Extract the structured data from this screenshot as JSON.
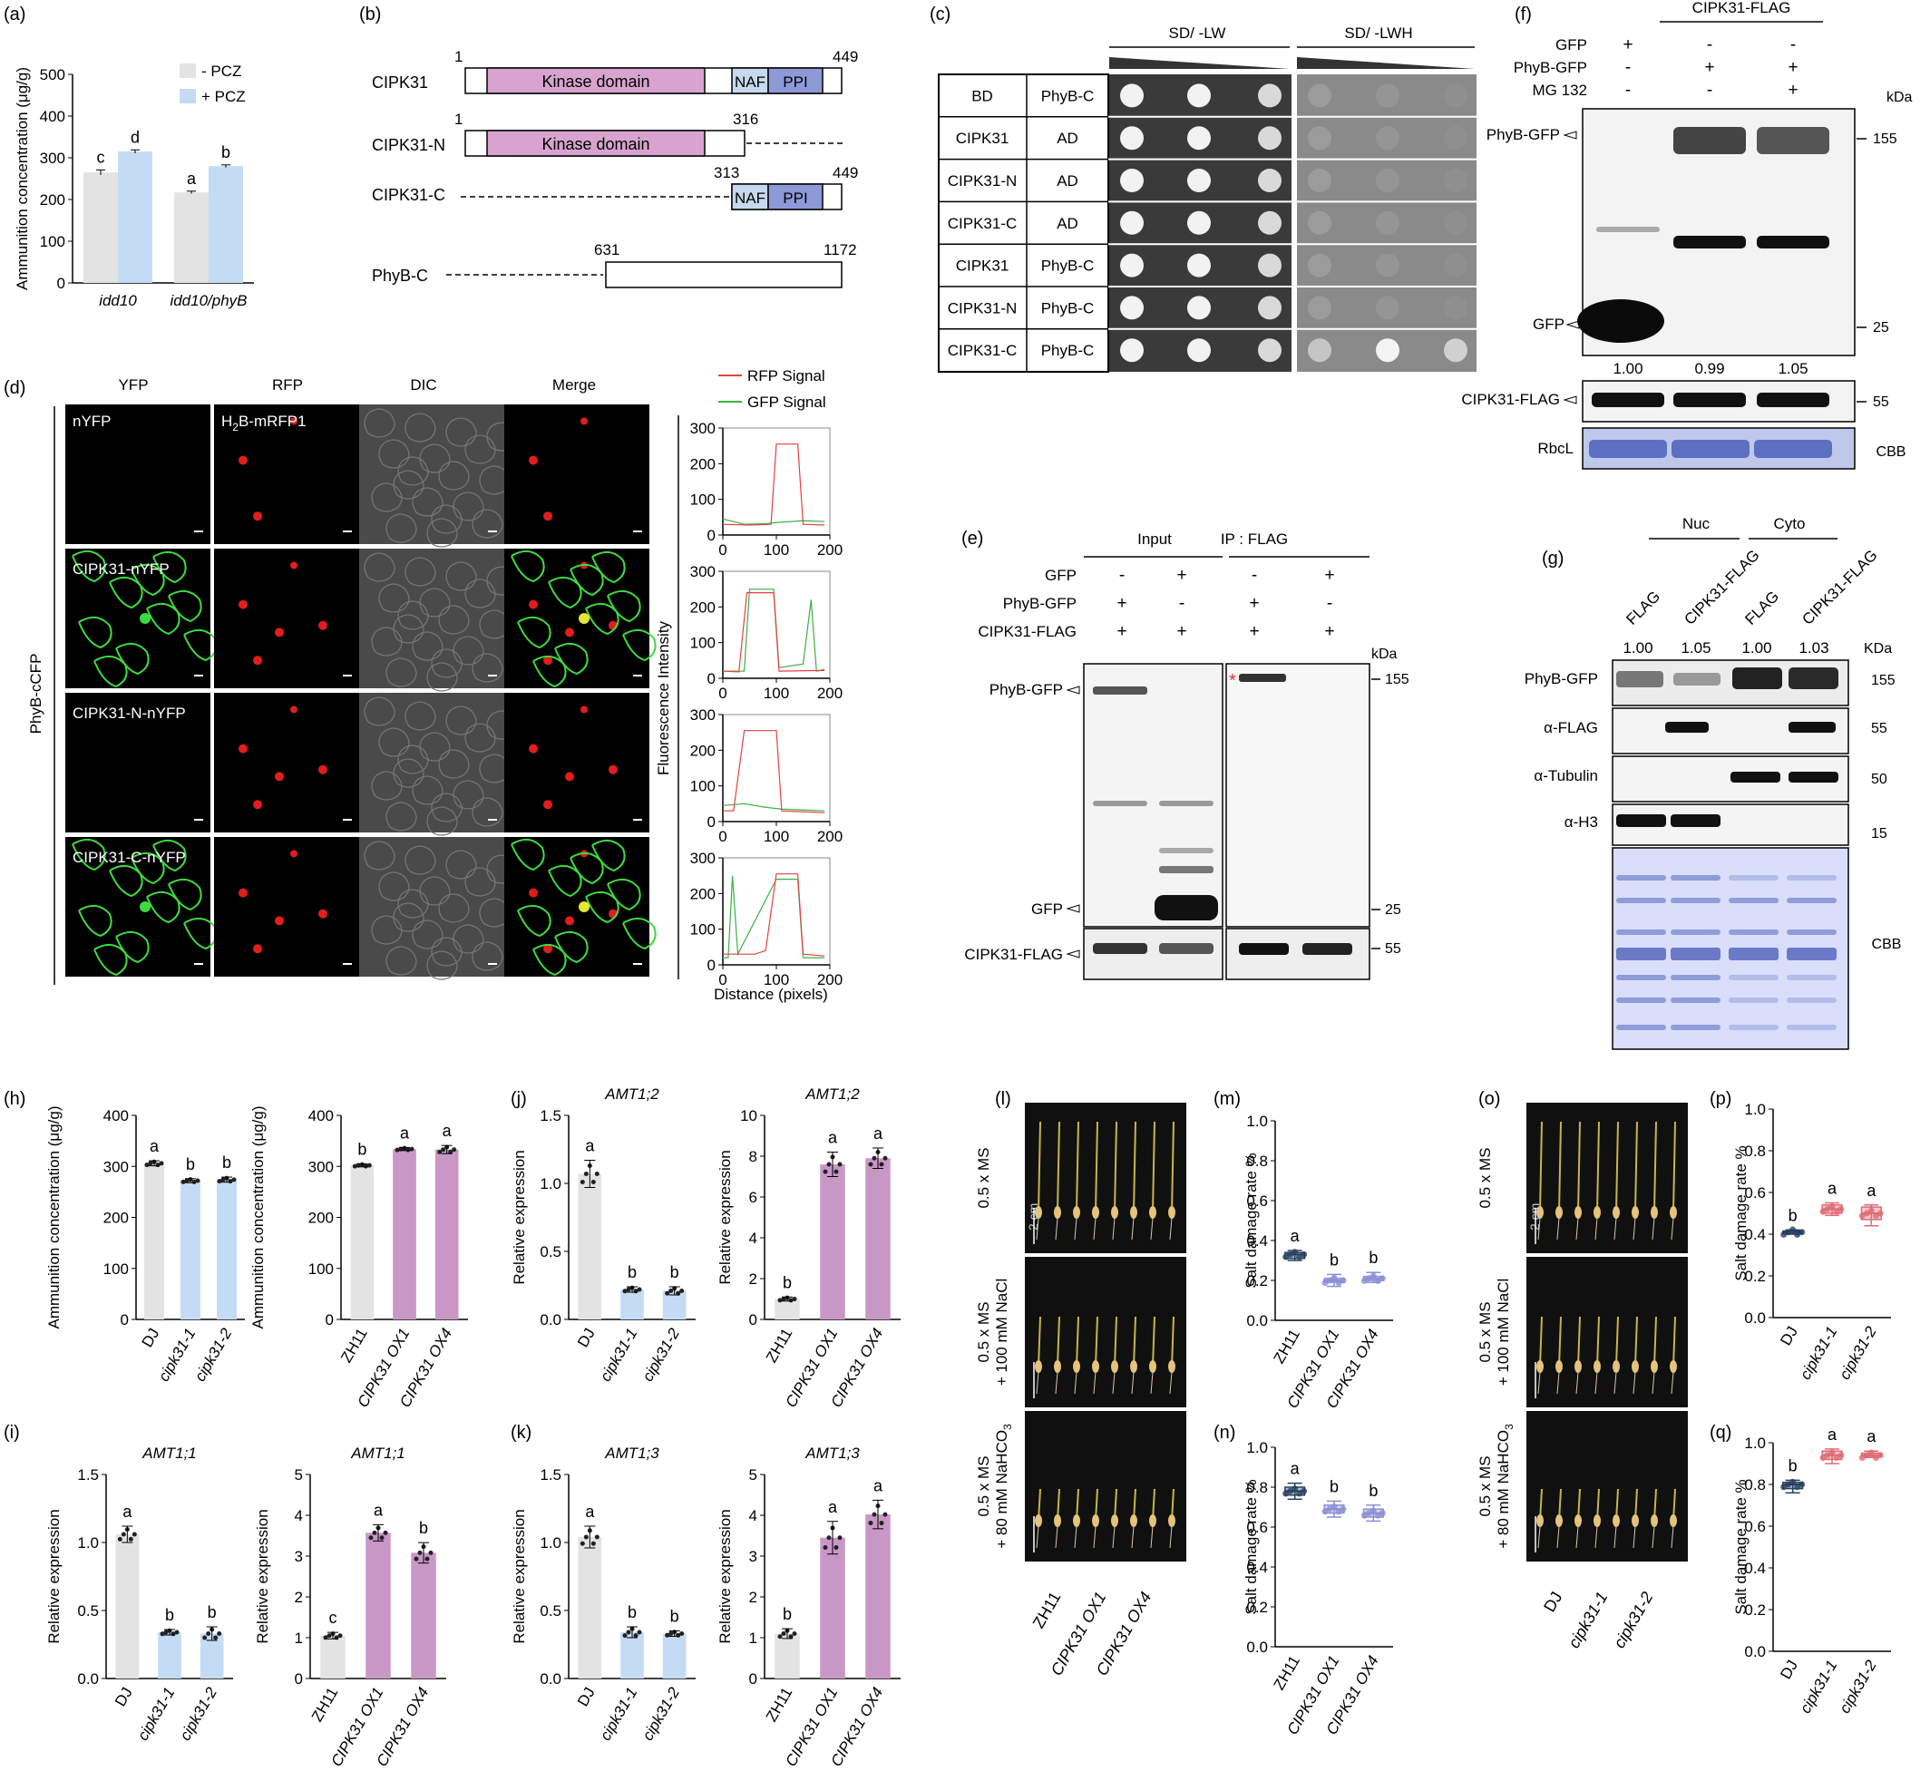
{
  "colors": {
    "gray": "#e3e3e3",
    "blue": "#c4dbf5",
    "pink": "#c997c6",
    "kinase": "#d8a4cf",
    "naf": "#c7d9ef",
    "ppi": "#8e99d8",
    "grayDot": "#222",
    "red": "#e84040",
    "green": "#3cb043",
    "boxBlue": "#8a8fd6",
    "boxRed": "#e06a75",
    "boxNavy": "#27405e",
    "ccb": "#5d6fc2"
  },
  "panel_letters": {
    "a": "(a)",
    "b": "(b)",
    "c": "(c)",
    "d": "(d)",
    "e": "(e)",
    "f": "(f)",
    "g": "(g)",
    "h": "(h)",
    "i": "(i)",
    "j": "(j)",
    "k": "(k)",
    "l": "(l)",
    "m": "(m)",
    "n": "(n)",
    "o": "(o)",
    "p": "(p)",
    "q": "(q)"
  },
  "panel_b": {
    "labels": [
      "CIPK31",
      "CIPK31-N",
      "CIPK31-C",
      "PhyB-C"
    ],
    "domain_kinase": "Kinase domain",
    "domain_naf": "NAF",
    "domain_ppi": "PPI",
    "nums": {
      "c1": "1",
      "c449": "449",
      "n1": "1",
      "n316": "316",
      "c313": "313",
      "c449b": "449",
      "p631": "631",
      "p1172": "1172"
    }
  },
  "panel_c": {
    "head1": "SD/ -LW",
    "head2": "SD/ -LWH",
    "rows": [
      [
        "BD",
        "PhyB-C"
      ],
      [
        "CIPK31",
        "AD"
      ],
      [
        "CIPK31-N",
        "AD"
      ],
      [
        "CIPK31-C",
        "AD"
      ],
      [
        "CIPK31",
        "PhyB-C"
      ],
      [
        "CIPK31-N",
        "PhyB-C"
      ],
      [
        "CIPK31-C",
        "PhyB-C"
      ]
    ]
  },
  "panel_d": {
    "cols": [
      "YFP",
      "RFP",
      "DIC",
      "Merge"
    ],
    "rows": [
      "nYFP",
      "CIPK31-nYFP",
      "CIPK31-N-nYFP",
      "CIPK31-C-nYFP"
    ],
    "rfp_label_main": "H",
    "rfp_label_sub": "2",
    "rfp_label_rest": "B-mRFP1",
    "side": "PhyB-cCFP",
    "legend_rfp": "RFP Signal",
    "legend_gfp": "GFP Signal",
    "ylabel": "Fluorescence Intensity",
    "xlabel": "Distance (pixels)",
    "yticks": [
      "0",
      "100",
      "200",
      "300"
    ],
    "xticks": [
      "0",
      "100",
      "200"
    ]
  },
  "panel_e": {
    "input": "Input",
    "ip": "IP : FLAG",
    "rowlabels": [
      "GFP",
      "PhyB-GFP",
      "CIPK31-FLAG"
    ],
    "signs": [
      [
        "-",
        "+",
        "-",
        "+"
      ],
      [
        "+",
        "-",
        "+",
        "-"
      ],
      [
        "+",
        "+",
        "+",
        "+"
      ]
    ],
    "kda": "kDa",
    "bands": [
      "PhyB-GFP",
      "GFP",
      "CIPK31-FLAG"
    ],
    "mw": [
      "155",
      "25",
      "55"
    ],
    "star": "*"
  },
  "panel_f": {
    "title": "CIPK31-FLAG",
    "rowlabels": [
      "GFP",
      "PhyB-GFP",
      "MG 132"
    ],
    "signs": [
      [
        "+",
        "-",
        "-"
      ],
      [
        "-",
        "+",
        "+"
      ],
      [
        "-",
        "-",
        "+"
      ]
    ],
    "kda": "kDa",
    "bands": [
      "PhyB-GFP",
      "GFP",
      "CIPK31-FLAG",
      "RbcL"
    ],
    "mw": [
      "155",
      "25",
      "55"
    ],
    "ratios": [
      "1.00",
      "0.99",
      "1.05"
    ],
    "cbb": "CBB"
  },
  "panel_g": {
    "nuc": "Nuc",
    "cyto": "Cyto",
    "lanes": [
      "FLAG",
      "CIPK31-FLAG",
      "FLAG",
      "CIPK31-FLAG"
    ],
    "ratios": [
      "1.00",
      "1.05",
      "1.00",
      "1.03"
    ],
    "kda": "KDa",
    "bands": [
      "PhyB-GFP",
      "α-FLAG",
      "α-Tubulin",
      "α-H3"
    ],
    "mw": [
      "155",
      "55",
      "50",
      "15"
    ],
    "cbb": "CBB"
  },
  "panel_lo": {
    "rows": [
      "0.5 x MS",
      "0.5 x MS",
      "0.5 x MS"
    ],
    "rows2": [
      "",
      "+ 100 mM NaCl",
      "+ 80 mM NaHCO"
    ],
    "sub": "3",
    "scale": "2 cm",
    "l_lines": [
      "ZH11",
      "CIPK31 OX1",
      "CIPK31 OX4"
    ],
    "o_lines": [
      "DJ",
      "cipk31-1",
      "cipk31-2"
    ]
  },
  "chart_data": [
    {
      "id": "a",
      "type": "bar",
      "categories": [
        "idd10",
        "idd10/phyB"
      ],
      "series": [
        {
          "name": "- PCZ",
          "values": [
            265,
            217
          ],
          "err": [
            6,
            3
          ]
        },
        {
          "name": "+ PCZ",
          "values": [
            315,
            280
          ],
          "err": [
            4,
            3
          ]
        }
      ],
      "letters": [
        [
          "c",
          "d"
        ],
        [
          "a",
          "b"
        ]
      ],
      "ylabel": "Ammunition concentration (μg/g)",
      "ylim": [
        0,
        500
      ],
      "yticks": [
        0,
        100,
        200,
        300,
        400,
        500
      ]
    },
    {
      "id": "h1",
      "type": "bar",
      "categories": [
        "DJ",
        "cipk31-1",
        "cipk31-2"
      ],
      "values": [
        306,
        272,
        274
      ],
      "err": [
        5,
        4,
        5
      ],
      "letters": [
        "a",
        "b",
        "b"
      ],
      "ylabel": "Ammunition concentration (μg/g)",
      "ylim": [
        0,
        400
      ],
      "yticks": [
        0,
        100,
        200,
        300,
        400
      ]
    },
    {
      "id": "h2",
      "type": "bar",
      "categories": [
        "ZH11",
        "CIPK31 OX1",
        "CIPK31 OX4"
      ],
      "values": [
        302,
        334,
        333
      ],
      "err": [
        3,
        3,
        8
      ],
      "letters": [
        "b",
        "a",
        "a"
      ],
      "ylabel": "Ammunition concentration (μg/g)",
      "ylim": [
        0,
        400
      ],
      "yticks": [
        0,
        100,
        200,
        300,
        400
      ]
    },
    {
      "id": "i1",
      "type": "bar",
      "title": "AMT1;1",
      "categories": [
        "DJ",
        "cipk31-1",
        "cipk31-2"
      ],
      "values": [
        1.06,
        0.34,
        0.33
      ],
      "err": [
        0.06,
        0.02,
        0.05
      ],
      "letters": [
        "a",
        "b",
        "b"
      ],
      "ylabel": "Relative expression",
      "ylim": [
        0,
        1.5
      ],
      "yticks": [
        "0.0",
        "0.5",
        "1.0",
        "1.5"
      ]
    },
    {
      "id": "i2",
      "type": "bar",
      "title": "AMT1;1",
      "categories": [
        "ZH11",
        "CIPK31 OX1",
        "CIPK31 OX4"
      ],
      "values": [
        1.05,
        3.57,
        3.08
      ],
      "err": [
        0.08,
        0.2,
        0.25
      ],
      "letters": [
        "c",
        "a",
        "b"
      ],
      "ylabel": "Relative expression",
      "ylim": [
        0,
        5
      ],
      "yticks": [
        "0",
        "1",
        "2",
        "3",
        "4",
        "5"
      ]
    },
    {
      "id": "j1",
      "type": "bar",
      "title": "AMT1;2",
      "categories": [
        "DJ",
        "cipk31-1",
        "cipk31-2"
      ],
      "values": [
        1.07,
        0.22,
        0.21
      ],
      "err": [
        0.1,
        0.02,
        0.03
      ],
      "letters": [
        "a",
        "b",
        "b"
      ],
      "ylabel": "Relative expression",
      "ylim": [
        0,
        1.5
      ],
      "yticks": [
        "0.0",
        "0.5",
        "1.0",
        "1.5"
      ]
    },
    {
      "id": "j2",
      "type": "bar",
      "title": "AMT1;2",
      "categories": [
        "ZH11",
        "CIPK31 OX1",
        "CIPK31 OX4"
      ],
      "values": [
        1.0,
        7.6,
        7.9
      ],
      "err": [
        0.1,
        0.6,
        0.5
      ],
      "letters": [
        "b",
        "a",
        "a"
      ],
      "ylabel": "Relative expression",
      "ylim": [
        0,
        10
      ],
      "yticks": [
        "0",
        "2",
        "4",
        "6",
        "8",
        "10"
      ]
    },
    {
      "id": "k1",
      "type": "bar",
      "title": "AMT1;3",
      "categories": [
        "DJ",
        "cipk31-1",
        "cipk31-2"
      ],
      "values": [
        1.04,
        0.34,
        0.33
      ],
      "err": [
        0.08,
        0.04,
        0.02
      ],
      "letters": [
        "a",
        "b",
        "b"
      ],
      "ylabel": "Relative expression",
      "ylim": [
        0,
        1.5
      ],
      "yticks": [
        "0.0",
        "0.5",
        "1.0",
        "1.5"
      ]
    },
    {
      "id": "k2",
      "type": "bar",
      "title": "AMT1;3",
      "categories": [
        "ZH11",
        "CIPK31 OX1",
        "CIPK31 OX4"
      ],
      "values": [
        1.1,
        3.45,
        4.02
      ],
      "err": [
        0.12,
        0.4,
        0.35
      ],
      "letters": [
        "b",
        "a",
        "a"
      ],
      "ylabel": "Relative expression",
      "ylim": [
        0,
        5
      ],
      "yticks": [
        "0",
        "1",
        "2",
        "3",
        "4",
        "5"
      ]
    },
    {
      "id": "m",
      "type": "box",
      "categories": [
        "ZH11",
        "CIPK31 OX1",
        "CIPK31 OX4"
      ],
      "medians": [
        0.33,
        0.2,
        0.21
      ],
      "q1": [
        0.31,
        0.19,
        0.2
      ],
      "q3": [
        0.34,
        0.21,
        0.22
      ],
      "min": [
        0.3,
        0.17,
        0.19
      ],
      "max": [
        0.35,
        0.23,
        0.24
      ],
      "letters": [
        "a",
        "b",
        "b"
      ],
      "ylabel": "Salt damage rate %",
      "ylim": [
        0,
        1.0
      ],
      "yticks": [
        "0.0",
        "0.2",
        "0.4",
        "0.6",
        "0.8",
        "1.0"
      ]
    },
    {
      "id": "n",
      "type": "box",
      "categories": [
        "ZH11",
        "CIPK31 OX1",
        "CIPK31 OX4"
      ],
      "medians": [
        0.78,
        0.69,
        0.67
      ],
      "q1": [
        0.76,
        0.67,
        0.65
      ],
      "q3": [
        0.8,
        0.71,
        0.69
      ],
      "min": [
        0.74,
        0.65,
        0.63
      ],
      "max": [
        0.82,
        0.73,
        0.71
      ],
      "letters": [
        "a",
        "b",
        "b"
      ],
      "ylabel": "Salt damage rate %",
      "ylim": [
        0,
        1.0
      ],
      "yticks": [
        "0.0",
        "0.2",
        "0.4",
        "0.6",
        "0.8",
        "1.0"
      ]
    },
    {
      "id": "p",
      "type": "box",
      "categories": [
        "DJ",
        "cipk31-1",
        "cipk31-2"
      ],
      "medians": [
        0.41,
        0.52,
        0.5
      ],
      "q1": [
        0.405,
        0.5,
        0.47
      ],
      "q3": [
        0.415,
        0.54,
        0.53
      ],
      "min": [
        0.4,
        0.49,
        0.44
      ],
      "max": [
        0.42,
        0.55,
        0.54
      ],
      "letters": [
        "b",
        "a",
        "a"
      ],
      "ylabel": "Salt damage rate %",
      "ylim": [
        0,
        1.0
      ],
      "yticks": [
        "0.0",
        "0.2",
        "0.4",
        "0.6",
        "0.8",
        "1.0"
      ]
    },
    {
      "id": "q",
      "type": "box",
      "categories": [
        "DJ",
        "cipk31-1",
        "cipk31-2"
      ],
      "medians": [
        0.8,
        0.94,
        0.94
      ],
      "q1": [
        0.78,
        0.92,
        0.935
      ],
      "q3": [
        0.81,
        0.96,
        0.95
      ],
      "min": [
        0.76,
        0.9,
        0.93
      ],
      "max": [
        0.82,
        0.97,
        0.96
      ],
      "letters": [
        "b",
        "a",
        "a"
      ],
      "ylabel": "Salt damage rate %",
      "ylim": [
        0,
        1.0
      ],
      "yticks": [
        "0.0",
        "0.2",
        "0.4",
        "0.6",
        "0.8",
        "1.0"
      ]
    },
    {
      "id": "d_profiles",
      "type": "line",
      "xlim": [
        0,
        200
      ],
      "ylim": [
        0,
        300
      ],
      "profiles": [
        {
          "rfp": [
            [
              0,
              30
            ],
            [
              50,
              28
            ],
            [
              90,
              30
            ],
            [
              100,
              255
            ],
            [
              140,
              255
            ],
            [
              150,
              30
            ],
            [
              190,
              28
            ]
          ],
          "gfp": [
            [
              0,
              45
            ],
            [
              40,
              30
            ],
            [
              80,
              32
            ],
            [
              100,
              35
            ],
            [
              150,
              40
            ],
            [
              190,
              38
            ]
          ]
        },
        {
          "rfp": [
            [
              0,
              20
            ],
            [
              30,
              18
            ],
            [
              45,
              240
            ],
            [
              95,
              240
            ],
            [
              105,
              20
            ],
            [
              190,
              22
            ]
          ],
          "gfp": [
            [
              0,
              20
            ],
            [
              40,
              20
            ],
            [
              50,
              250
            ],
            [
              95,
              250
            ],
            [
              105,
              30
            ],
            [
              150,
              40
            ],
            [
              165,
              220
            ],
            [
              175,
              20
            ],
            [
              190,
              25
            ]
          ]
        },
        {
          "rfp": [
            [
              0,
              30
            ],
            [
              20,
              30
            ],
            [
              40,
              255
            ],
            [
              100,
              255
            ],
            [
              110,
              30
            ],
            [
              190,
              25
            ]
          ],
          "gfp": [
            [
              0,
              45
            ],
            [
              40,
              50
            ],
            [
              80,
              40
            ],
            [
              110,
              35
            ],
            [
              190,
              30
            ]
          ]
        },
        {
          "rfp": [
            [
              0,
              30
            ],
            [
              60,
              30
            ],
            [
              80,
              40
            ],
            [
              100,
              255
            ],
            [
              140,
              255
            ],
            [
              150,
              30
            ],
            [
              190,
              25
            ]
          ],
          "gfp": [
            [
              0,
              20
            ],
            [
              10,
              20
            ],
            [
              18,
              250
            ],
            [
              28,
              30
            ],
            [
              100,
              240
            ],
            [
              140,
              240
            ],
            [
              150,
              20
            ],
            [
              190,
              20
            ]
          ]
        }
      ]
    }
  ]
}
